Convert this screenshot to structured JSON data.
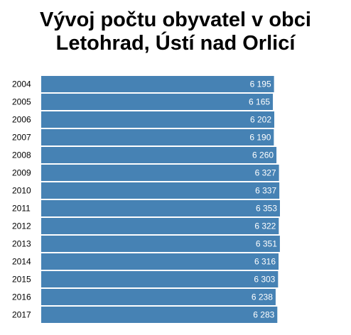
{
  "chart_data": {
    "type": "bar",
    "orientation": "horizontal",
    "title_lines": [
      "Vývoj počtu obyvatel v obci",
      "Letohrad, Ústí nad Orlicí"
    ],
    "categories": [
      "2004",
      "2005",
      "2006",
      "2007",
      "2008",
      "2009",
      "2010",
      "2011",
      "2012",
      "2013",
      "2014",
      "2015",
      "2016",
      "2017"
    ],
    "values": [
      6195,
      6165,
      6202,
      6190,
      6260,
      6327,
      6337,
      6353,
      6322,
      6351,
      6316,
      6303,
      6238,
      6283
    ],
    "value_labels": [
      "6 195",
      "6 165",
      "6 202",
      "6 190",
      "6 260",
      "6 327",
      "6 337",
      "6 353",
      "6 322",
      "6 351",
      "6 316",
      "6 303",
      "6 238",
      "6 283"
    ],
    "xlim": [
      0,
      6353
    ],
    "grid": false,
    "legend": "none",
    "bar_color": "#4682b4"
  }
}
